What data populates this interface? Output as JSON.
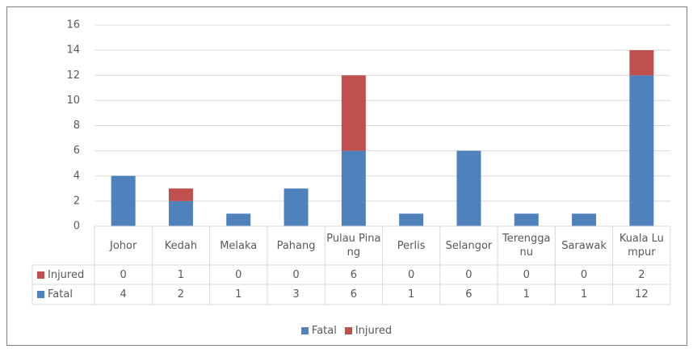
{
  "chart_data": {
    "type": "stacked_bar",
    "categories": [
      "Johor",
      "Kedah",
      "Melaka",
      "Pahang",
      "Pulau Pinang",
      "Perlis",
      "Selangor",
      "Terengganu",
      "Sarawak",
      "Kuala Lumpur"
    ],
    "series": [
      {
        "name": "Fatal",
        "color": "#4f81bd",
        "values": [
          4,
          2,
          1,
          3,
          6,
          1,
          6,
          1,
          1,
          12
        ]
      },
      {
        "name": "Injured",
        "color": "#c0504d",
        "values": [
          0,
          1,
          0,
          0,
          6,
          0,
          0,
          0,
          0,
          2
        ]
      }
    ],
    "ylim": [
      0,
      16
    ],
    "yticks": [
      0,
      2,
      4,
      6,
      8,
      10,
      12,
      14,
      16
    ],
    "grid": true,
    "legend": "bottom",
    "data_table": true
  }
}
